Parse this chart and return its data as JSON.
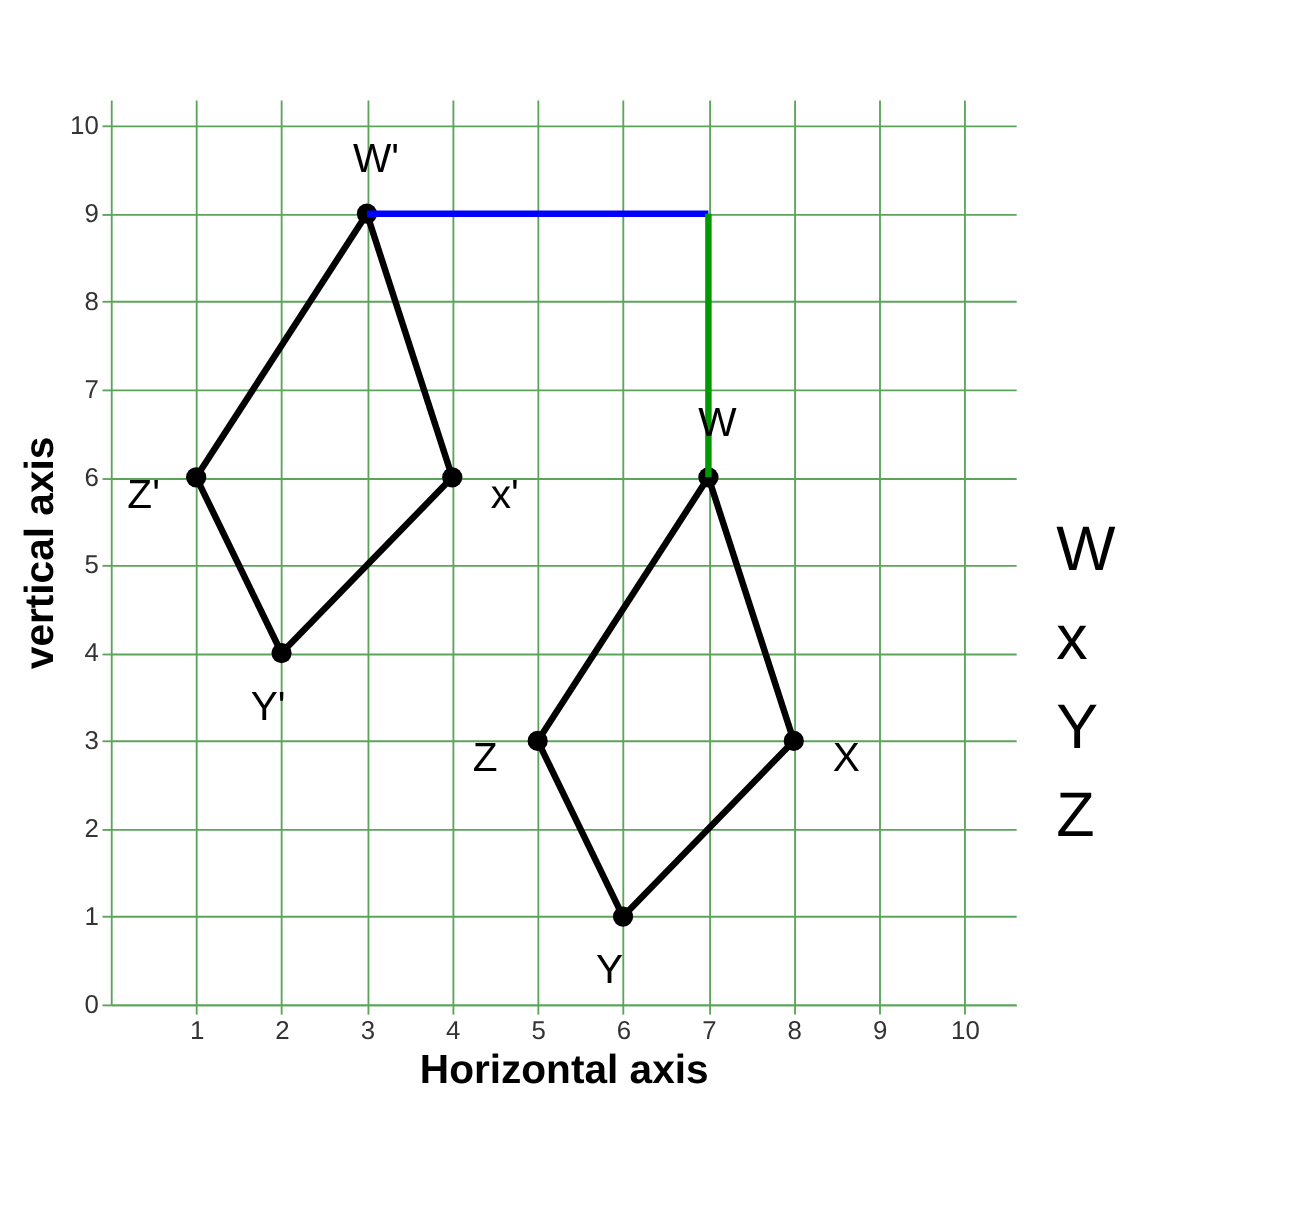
{
  "chart_data": {
    "type": "line",
    "xlabel": "Horizontal axis",
    "ylabel": "vertical axis",
    "xlim": [
      0,
      10.6
    ],
    "ylim": [
      0,
      10.3
    ],
    "xticks": [
      1,
      2,
      3,
      4,
      5,
      6,
      7,
      8,
      9,
      10
    ],
    "yticks": [
      0,
      1,
      2,
      3,
      4,
      5,
      6,
      7,
      8,
      9,
      10
    ],
    "grid": true,
    "series": [
      {
        "color": "#000000",
        "x": [
          7,
          8
        ],
        "values": [
          6,
          3
        ],
        "marker": "none"
      },
      {
        "color": "#000000",
        "x": [
          6,
          8
        ],
        "values": [
          1,
          3
        ],
        "marker": "none"
      },
      {
        "color": "#000000",
        "x": [
          5,
          6
        ],
        "values": [
          3,
          1
        ],
        "marker": "none"
      },
      {
        "color": "#000000",
        "x": [
          5,
          7
        ],
        "values": [
          3,
          6
        ],
        "marker": "none"
      },
      {
        "color": "#000000",
        "x": [
          3,
          4
        ],
        "values": [
          9,
          6
        ],
        "marker": "none"
      },
      {
        "color": "#000000",
        "x": [
          2,
          4
        ],
        "values": [
          4,
          6
        ],
        "marker": "none"
      },
      {
        "color": "#000000",
        "x": [
          1,
          2
        ],
        "values": [
          6,
          4
        ],
        "marker": "none"
      },
      {
        "color": "#000000",
        "x": [
          1,
          3
        ],
        "values": [
          6,
          9
        ],
        "marker": "none"
      },
      {
        "type": "scatter",
        "color": "#000000",
        "x": [
          7,
          8,
          6,
          5,
          3,
          4,
          2,
          1
        ],
        "values": [
          6,
          3,
          1,
          3,
          9,
          6,
          4,
          6
        ],
        "marker": "circle"
      },
      {
        "color": "#0000ff",
        "x": [
          3,
          7
        ],
        "values": [
          9,
          9
        ],
        "marker": "none"
      },
      {
        "color": "#009900",
        "x": [
          7,
          7
        ],
        "values": [
          9,
          6
        ],
        "marker": "none"
      }
    ],
    "annotations": [
      {
        "text": "W",
        "x": 7,
        "y": 6
      },
      {
        "text": "X",
        "x": 8,
        "y": 3
      },
      {
        "text": "Y",
        "x": 6,
        "y": 1
      },
      {
        "text": "Z",
        "x": 5,
        "y": 3
      },
      {
        "text": "W'",
        "x": 3,
        "y": 9
      },
      {
        "text": "x'",
        "x": 4,
        "y": 6
      },
      {
        "text": "Y'",
        "x": 2,
        "y": 4
      },
      {
        "text": "Z'",
        "x": 1,
        "y": 6
      },
      "W",
      "x",
      "Y",
      "Z"
    ]
  }
}
